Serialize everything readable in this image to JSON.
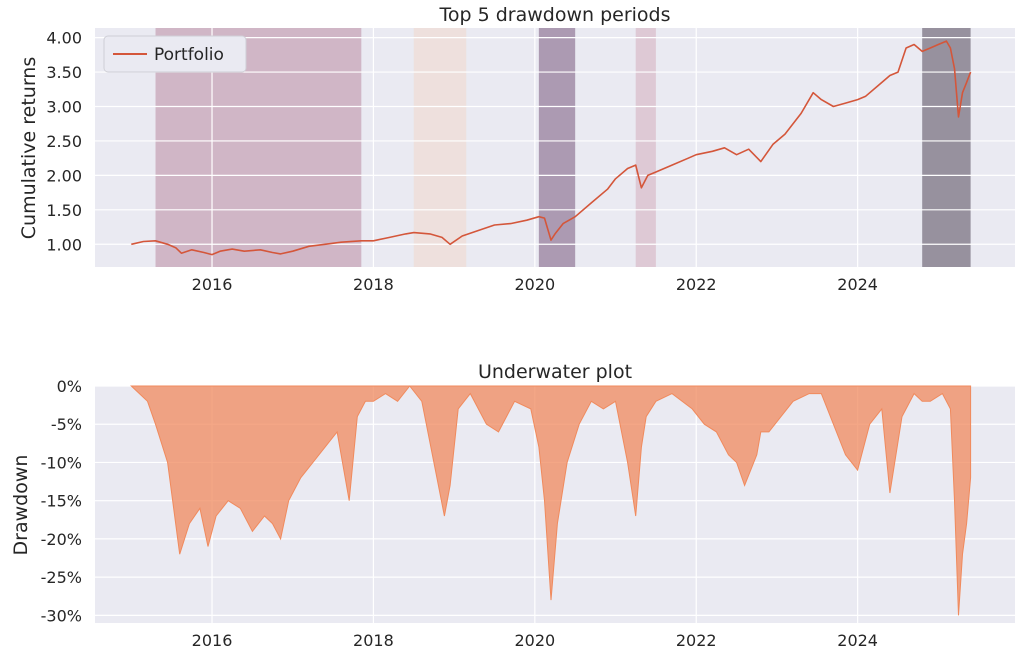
{
  "chart_data": [
    {
      "type": "line",
      "title": "Top 5 drawdown periods",
      "xlabel": "",
      "ylabel": "Cumulative returns",
      "xlim": [
        2014.55,
        2025.95
      ],
      "ylim": [
        0.67,
        4.14
      ],
      "x_ticks": [
        {
          "value": 2016,
          "label": "2016"
        },
        {
          "value": 2018,
          "label": "2018"
        },
        {
          "value": 2020,
          "label": "2020"
        },
        {
          "value": 2022,
          "label": "2022"
        },
        {
          "value": 2024,
          "label": "2024"
        }
      ],
      "y_ticks": [
        {
          "value": 1.0,
          "label": "1.00"
        },
        {
          "value": 1.5,
          "label": "1.50"
        },
        {
          "value": 2.0,
          "label": "2.00"
        },
        {
          "value": 2.5,
          "label": "2.50"
        },
        {
          "value": 3.0,
          "label": "3.00"
        },
        {
          "value": 3.5,
          "label": "3.50"
        },
        {
          "value": 4.0,
          "label": "4.00"
        }
      ],
      "legend": {
        "position": "top-left",
        "entries": [
          "Portfolio"
        ]
      },
      "grid": true,
      "drawdown_periods": [
        {
          "start": 2015.3,
          "end": 2017.85,
          "color": "#b98aa3",
          "opacity": 0.55
        },
        {
          "start": 2018.5,
          "end": 2019.15,
          "color": "#efdcd6",
          "opacity": 0.75
        },
        {
          "start": 2020.05,
          "end": 2020.5,
          "color": "#8b6e8f",
          "opacity": 0.65
        },
        {
          "start": 2021.25,
          "end": 2021.5,
          "color": "#d6b3c2",
          "opacity": 0.6
        },
        {
          "start": 2024.8,
          "end": 2025.4,
          "color": "#6a6170",
          "opacity": 0.65
        }
      ],
      "series": [
        {
          "name": "Portfolio",
          "color": "#d4563a",
          "x": [
            2015.0,
            2015.15,
            2015.3,
            2015.45,
            2015.55,
            2015.62,
            2015.75,
            2015.9,
            2016.0,
            2016.1,
            2016.25,
            2016.4,
            2016.6,
            2016.75,
            2016.85,
            2017.0,
            2017.2,
            2017.4,
            2017.6,
            2017.85,
            2018.0,
            2018.2,
            2018.4,
            2018.5,
            2018.7,
            2018.85,
            2018.95,
            2019.1,
            2019.3,
            2019.5,
            2019.7,
            2019.9,
            2020.05,
            2020.12,
            2020.2,
            2020.25,
            2020.35,
            2020.5,
            2020.7,
            2020.9,
            2021.0,
            2021.15,
            2021.25,
            2021.32,
            2021.4,
            2021.5,
            2021.7,
            2021.9,
            2022.0,
            2022.2,
            2022.35,
            2022.5,
            2022.65,
            2022.8,
            2022.95,
            2023.1,
            2023.3,
            2023.45,
            2023.55,
            2023.7,
            2023.85,
            2024.0,
            2024.1,
            2024.25,
            2024.4,
            2024.5,
            2024.6,
            2024.7,
            2024.8,
            2024.9,
            2025.0,
            2025.1,
            2025.15,
            2025.2,
            2025.25,
            2025.3,
            2025.35,
            2025.4
          ],
          "values": [
            1.0,
            1.04,
            1.05,
            1.0,
            0.95,
            0.87,
            0.92,
            0.88,
            0.85,
            0.9,
            0.93,
            0.9,
            0.92,
            0.88,
            0.86,
            0.9,
            0.97,
            1.0,
            1.03,
            1.05,
            1.05,
            1.1,
            1.15,
            1.17,
            1.15,
            1.1,
            1.0,
            1.12,
            1.2,
            1.28,
            1.3,
            1.35,
            1.4,
            1.38,
            1.06,
            1.15,
            1.3,
            1.4,
            1.6,
            1.8,
            1.95,
            2.1,
            2.15,
            1.82,
            2.0,
            2.05,
            2.15,
            2.25,
            2.3,
            2.35,
            2.4,
            2.3,
            2.38,
            2.2,
            2.45,
            2.6,
            2.9,
            3.2,
            3.1,
            3.0,
            3.05,
            3.1,
            3.15,
            3.3,
            3.45,
            3.5,
            3.85,
            3.9,
            3.8,
            3.85,
            3.9,
            3.95,
            3.85,
            3.55,
            2.85,
            3.2,
            3.35,
            3.5
          ]
        }
      ]
    },
    {
      "type": "area",
      "title": "Underwater plot",
      "xlabel": "",
      "ylabel": "Drawdown",
      "xlim": [
        2014.55,
        2025.95
      ],
      "ylim": [
        -31,
        0
      ],
      "x_ticks": [
        {
          "value": 2016,
          "label": "2016"
        },
        {
          "value": 2018,
          "label": "2018"
        },
        {
          "value": 2020,
          "label": "2020"
        },
        {
          "value": 2022,
          "label": "2022"
        },
        {
          "value": 2024,
          "label": "2024"
        }
      ],
      "y_ticks": [
        {
          "value": 0,
          "label": "0%"
        },
        {
          "value": -5,
          "label": "-5%"
        },
        {
          "value": -10,
          "label": "-10%"
        },
        {
          "value": -15,
          "label": "-15%"
        },
        {
          "value": -20,
          "label": "-20%"
        },
        {
          "value": -25,
          "label": "-25%"
        },
        {
          "value": -30,
          "label": "-30%"
        }
      ],
      "grid": true,
      "series": [
        {
          "name": "",
          "color": "#f08a5d",
          "x": [
            2015.0,
            2015.1,
            2015.2,
            2015.3,
            2015.45,
            2015.6,
            2015.72,
            2015.85,
            2015.95,
            2016.05,
            2016.2,
            2016.35,
            2016.5,
            2016.65,
            2016.75,
            2016.85,
            2016.95,
            2017.1,
            2017.25,
            2017.4,
            2017.55,
            2017.7,
            2017.8,
            2017.9,
            2018.0,
            2018.15,
            2018.3,
            2018.45,
            2018.6,
            2018.75,
            2018.88,
            2018.95,
            2019.05,
            2019.2,
            2019.4,
            2019.55,
            2019.75,
            2019.95,
            2020.05,
            2020.12,
            2020.2,
            2020.28,
            2020.4,
            2020.55,
            2020.7,
            2020.85,
            2021.0,
            2021.15,
            2021.25,
            2021.32,
            2021.38,
            2021.5,
            2021.7,
            2021.95,
            2022.1,
            2022.25,
            2022.4,
            2022.5,
            2022.6,
            2022.75,
            2022.8,
            2022.9,
            2023.05,
            2023.2,
            2023.4,
            2023.55,
            2023.7,
            2023.85,
            2024.0,
            2024.15,
            2024.3,
            2024.4,
            2024.55,
            2024.7,
            2024.8,
            2024.9,
            2025.05,
            2025.15,
            2025.2,
            2025.25,
            2025.3,
            2025.35,
            2025.4
          ],
          "values": [
            0,
            -1,
            -2,
            -5,
            -10,
            -22,
            -18,
            -16,
            -21,
            -17,
            -15,
            -16,
            -19,
            -17,
            -18,
            -20,
            -15,
            -12,
            -10,
            -8,
            -6,
            -15,
            -4,
            -2,
            -2,
            -1,
            -2,
            0,
            -2,
            -10,
            -17,
            -13,
            -3,
            -1,
            -5,
            -6,
            -2,
            -3,
            -8,
            -15,
            -28,
            -18,
            -10,
            -5,
            -2,
            -3,
            -2,
            -10,
            -17,
            -8,
            -4,
            -2,
            -1,
            -3,
            -5,
            -6,
            -9,
            -10,
            -13,
            -9,
            -6,
            -6,
            -4,
            -2,
            -1,
            -1,
            -5,
            -9,
            -11,
            -5,
            -3,
            -14,
            -4,
            -1,
            -2,
            -2,
            -1,
            -3,
            -15,
            -30,
            -22,
            -18,
            -12
          ]
        }
      ]
    }
  ]
}
